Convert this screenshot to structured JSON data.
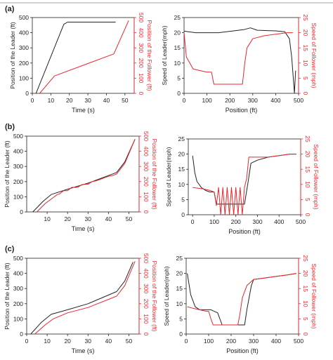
{
  "panel_labels": [
    "(a)",
    "(b)",
    "(c)"
  ],
  "colors": {
    "leader": "#222222",
    "follower": "#e8262c",
    "axis": "#222222",
    "follower_axis": "#e8262c"
  },
  "chart_data": [
    {
      "id": "a-left",
      "type": "line",
      "xlabel": "Time (s)",
      "ylabel": "Position of the Leader (ft)",
      "y2label": "Position of the Follower (ft)",
      "xlim": [
        0,
        55
      ],
      "xticks": [
        0,
        10,
        20,
        30,
        40,
        50
      ],
      "ylim": [
        0,
        500
      ],
      "yticks": [
        0,
        100,
        200,
        300,
        400,
        500
      ],
      "y2lim": [
        0,
        500
      ],
      "y2ticks": [
        0,
        100,
        200,
        300,
        400,
        500
      ],
      "series": [
        {
          "role": "leader",
          "axis": "y",
          "x": [
            2,
            17,
            19,
            45
          ],
          "y": [
            0,
            455,
            470,
            470
          ]
        },
        {
          "role": "follower",
          "axis": "y2",
          "x": [
            4,
            12,
            44,
            52
          ],
          "y": [
            0,
            115,
            260,
            480
          ]
        }
      ]
    },
    {
      "id": "a-right",
      "type": "line",
      "xlabel": "Position (ft)",
      "ylabel": "Speed of Leader(mph)",
      "y2label": "Speed of Follower (mph)",
      "xlim": [
        0,
        500
      ],
      "xticks": [
        0,
        100,
        200,
        300,
        400,
        500
      ],
      "ylim": [
        0,
        25
      ],
      "yticks": [
        0,
        5,
        10,
        15,
        20,
        25
      ],
      "y2lim": [
        0,
        25
      ],
      "y2ticks": [
        0,
        5,
        10,
        15,
        20,
        25
      ],
      "series": [
        {
          "role": "leader",
          "axis": "y",
          "x": [
            0,
            50,
            150,
            260,
            290,
            320,
            400,
            440,
            460,
            470,
            478,
            482,
            487
          ],
          "y": [
            20.5,
            20,
            20,
            21,
            21.6,
            20.8,
            20.6,
            20.3,
            18,
            12,
            4,
            0,
            7.5
          ]
        },
        {
          "role": "follower",
          "axis": "y2",
          "x": [
            0,
            10,
            40,
            70,
            100,
            120,
            130,
            200,
            255,
            265,
            275,
            300,
            350,
            400,
            450,
            475
          ],
          "y": [
            20,
            12,
            8,
            7.5,
            7,
            7,
            3,
            3,
            3,
            10,
            15,
            18,
            19,
            19.5,
            20,
            20
          ]
        }
      ]
    },
    {
      "id": "b-left",
      "type": "line",
      "xlabel": "Time (s)",
      "ylabel": "Position of the Leader (ft)",
      "y2label": "Position of the Follower (ft)",
      "xlim": [
        0,
        55
      ],
      "xticks": [
        10,
        20,
        30,
        40,
        50
      ],
      "ylim": [
        0,
        500
      ],
      "yticks": [
        0,
        100,
        200,
        300,
        400,
        500
      ],
      "y2lim": [
        0,
        500
      ],
      "y2ticks": [
        0,
        100,
        200,
        300,
        400,
        500
      ],
      "series": [
        {
          "role": "leader",
          "axis": "y",
          "x": [
            3,
            8,
            12,
            20,
            30,
            44,
            48,
            53
          ],
          "y": [
            0,
            70,
            115,
            150,
            190,
            260,
            330,
            480
          ]
        },
        {
          "role": "follower",
          "axis": "y2",
          "x": [
            5,
            9,
            13,
            15,
            16,
            18,
            20,
            22,
            25,
            27,
            28,
            30,
            32,
            34,
            35,
            38,
            40,
            42,
            44,
            48,
            53
          ],
          "y": [
            0,
            55,
            95,
            115,
            118,
            140,
            140,
            162,
            162,
            180,
            182,
            183,
            200,
            205,
            210,
            225,
            235,
            240,
            250,
            320,
            480
          ]
        }
      ]
    },
    {
      "id": "b-right",
      "type": "line",
      "xlabel": "Position (ft)",
      "ylabel": "Speed of Leader(mph)",
      "y2label": "Speed of Follower (mph)",
      "xlim": [
        -20,
        500
      ],
      "xticks": [
        0,
        100,
        200,
        300,
        400,
        500
      ],
      "ylim": [
        0,
        25
      ],
      "yticks": [
        0,
        5,
        10,
        15,
        20,
        25
      ],
      "y2lim": [
        0,
        25
      ],
      "y2ticks": [
        0,
        5,
        10,
        15,
        20,
        25
      ],
      "series": [
        {
          "role": "leader",
          "axis": "y",
          "x": [
            0,
            10,
            20,
            40,
            60,
            80,
            100,
            110,
            120,
            240,
            255,
            270,
            300,
            350,
            400,
            450,
            480
          ],
          "y": [
            19.5,
            14,
            11,
            9,
            8,
            7.5,
            7.5,
            3.5,
            3.5,
            3.5,
            10,
            17,
            18,
            19,
            19.5,
            20,
            20
          ]
        },
        {
          "role": "follower",
          "axis": "y2",
          "x": [
            0,
            50,
            80,
            100,
            110,
            120,
            130,
            140,
            150,
            160,
            170,
            180,
            190,
            200,
            210,
            220,
            230,
            240,
            250,
            260,
            300,
            350,
            400,
            450,
            480
          ],
          "y": [
            9,
            8.5,
            8,
            7.5,
            3,
            9,
            0,
            9,
            0,
            9,
            0,
            9,
            0,
            9,
            0,
            9,
            0,
            9,
            12,
            19,
            19,
            19,
            19.5,
            20,
            20
          ]
        }
      ]
    },
    {
      "id": "c-left",
      "type": "line",
      "xlabel": "Time (s)",
      "ylabel": "Position of the Leader (ft)",
      "y2label": "Position of the Follower (ft)",
      "xlim": [
        0,
        55
      ],
      "xticks": [
        0,
        10,
        20,
        30,
        40,
        50
      ],
      "ylim": [
        0,
        500
      ],
      "yticks": [
        0,
        100,
        200,
        300,
        400,
        500
      ],
      "y2lim": [
        0,
        500
      ],
      "y2ticks": [
        0,
        100,
        200,
        300,
        400,
        500
      ],
      "series": [
        {
          "role": "leader",
          "axis": "y",
          "x": [
            2,
            7,
            12,
            20,
            30,
            44,
            48,
            52
          ],
          "y": [
            0,
            75,
            130,
            160,
            200,
            280,
            350,
            475
          ]
        },
        {
          "role": "follower",
          "axis": "y2",
          "x": [
            4,
            9,
            13,
            20,
            30,
            44,
            48,
            53
          ],
          "y": [
            0,
            60,
            100,
            140,
            175,
            250,
            320,
            480
          ]
        }
      ]
    },
    {
      "id": "c-right",
      "type": "line",
      "xlabel": "Position (ft)",
      "ylabel": "Speed of Leader(mph)",
      "y2label": "Speed of Follower (mph)",
      "xlim": [
        0,
        500
      ],
      "xticks": [
        0,
        100,
        200,
        300,
        400,
        500
      ],
      "ylim": [
        0,
        25
      ],
      "yticks": [
        0,
        5,
        10,
        15,
        20,
        25
      ],
      "y2lim": [
        0,
        25
      ],
      "y2ticks": [
        0,
        5,
        10,
        15,
        20,
        25
      ],
      "series": [
        {
          "role": "leader",
          "axis": "y",
          "x": [
            5,
            20,
            40,
            60,
            100,
            110,
            140,
            160,
            250,
            260,
            270,
            290,
            300,
            350,
            400,
            450,
            490
          ],
          "y": [
            20,
            13,
            9,
            8,
            8,
            8,
            7,
            3,
            3,
            3,
            8,
            16,
            18,
            18.5,
            19,
            19.5,
            20
          ]
        },
        {
          "role": "follower",
          "axis": "y2",
          "x": [
            5,
            30,
            60,
            90,
            100,
            110,
            120,
            130,
            230,
            240,
            250,
            270,
            300,
            350,
            400,
            450,
            490
          ],
          "y": [
            9,
            8.5,
            8,
            7.5,
            7.5,
            5,
            3,
            3,
            3,
            7,
            12,
            16,
            18,
            18.5,
            19,
            19.5,
            20
          ]
        }
      ]
    }
  ]
}
